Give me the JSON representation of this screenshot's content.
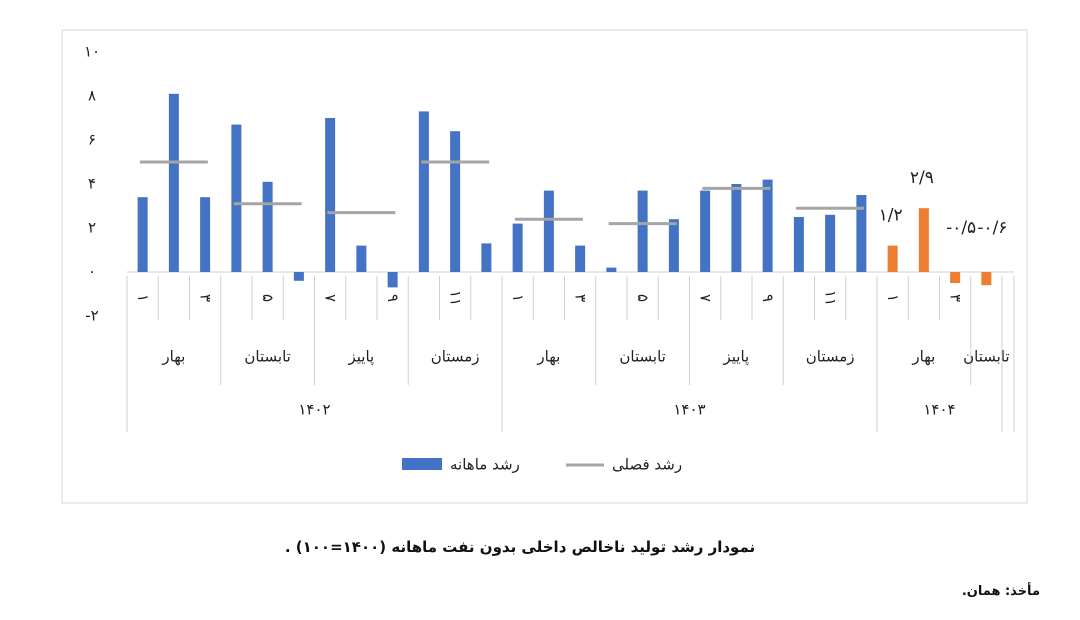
{
  "chart_data": {
    "type": "bar",
    "ylim": [
      -2,
      10
    ],
    "yticks": [
      {
        "value": -2,
        "label": "-۲"
      },
      {
        "value": 0,
        "label": "۰"
      },
      {
        "value": 2,
        "label": "۲"
      },
      {
        "value": 4,
        "label": "۴"
      },
      {
        "value": 6,
        "label": "۶"
      },
      {
        "value": 8,
        "label": "۸"
      },
      {
        "value": 10,
        "label": "۱۰"
      }
    ],
    "groups": [
      {
        "label": "۱۴۰۲",
        "seasons": [
          {
            "label": "بهار",
            "months": [
              "۱",
              null,
              "۳"
            ]
          },
          {
            "label": "تابستان",
            "months": [
              null,
              "۵",
              null
            ]
          },
          {
            "label": "پاییز",
            "months": [
              "۷",
              null,
              "۹"
            ]
          },
          {
            "label": "زمستان",
            "months": [
              null,
              "۱۱",
              null
            ]
          }
        ]
      },
      {
        "label": "۱۴۰۳",
        "seasons": [
          {
            "label": "بهار",
            "months": [
              "۱",
              null,
              "۳"
            ]
          },
          {
            "label": "تابستان",
            "months": [
              null,
              "۵",
              null
            ]
          },
          {
            "label": "پاییز",
            "months": [
              "۷",
              null,
              "۹"
            ]
          },
          {
            "label": "زمستان",
            "months": [
              null,
              "۱۱",
              null
            ]
          }
        ]
      },
      {
        "label": "۱۴۰۴",
        "seasons": [
          {
            "label": "بهار",
            "months": [
              "۱",
              null,
              "۳"
            ]
          },
          {
            "label": "تابستان",
            "months": [
              null
            ]
          }
        ]
      }
    ],
    "series": [
      {
        "name": "رشد ماهانه",
        "color": "#4472c4",
        "colors": [
          "#4472c4",
          "#4472c4",
          "#4472c4",
          "#4472c4",
          "#4472c4",
          "#4472c4",
          "#4472c4",
          "#4472c4",
          "#4472c4",
          "#4472c4",
          "#4472c4",
          "#4472c4",
          "#4472c4",
          "#4472c4",
          "#4472c4",
          "#4472c4",
          "#4472c4",
          "#4472c4",
          "#4472c4",
          "#4472c4",
          "#4472c4",
          "#4472c4",
          "#4472c4",
          "#4472c4",
          "#ed7d31",
          "#ed7d31",
          "#ed7d31",
          "#ed7d31"
        ],
        "values": [
          3.4,
          8.1,
          3.4,
          6.7,
          4.1,
          -0.4,
          7.0,
          1.2,
          -0.7,
          7.3,
          6.4,
          1.3,
          2.2,
          3.7,
          1.2,
          0.2,
          3.7,
          2.4,
          3.7,
          4.0,
          4.2,
          2.5,
          2.6,
          3.5,
          1.2,
          2.9,
          -0.5,
          -0.6
        ],
        "value_labels": [
          null,
          null,
          null,
          null,
          null,
          null,
          null,
          null,
          null,
          null,
          null,
          null,
          null,
          null,
          null,
          null,
          null,
          null,
          null,
          null,
          null,
          null,
          null,
          null,
          "۱/۲",
          "۲/۹",
          "-۰/۵",
          "-۰/۶"
        ]
      },
      {
        "name": "رشد فصلی",
        "color": "#a5a5a5",
        "type": "line",
        "values": [
          5.0,
          3.1,
          2.7,
          5.0,
          2.4,
          2.2,
          3.8,
          2.9,
          null,
          null
        ]
      }
    ],
    "caption": "نمودار رشد تولید ناخالص داخلی بدون نفت ماهانه (۱۴۰۰=۱۰۰) .",
    "source": "مأخذ: همان."
  }
}
